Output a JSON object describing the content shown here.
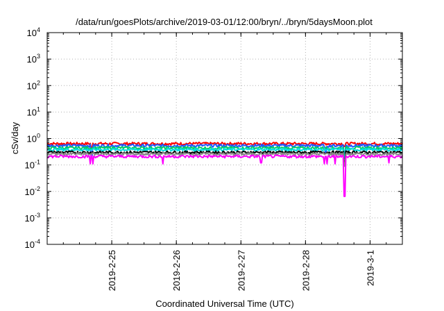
{
  "chart_data": {
    "type": "line",
    "title": "/data/run/goesPlots/archive/2019-03-01/12:00/bryn/../bryn/5daysMoon.plot",
    "xlabel": "Coordinated Universal Time (UTC)",
    "ylabel": "cSv/day",
    "yscale": "log",
    "ylim": [
      0.0001,
      10000
    ],
    "y_ticks": [
      {
        "base": "10",
        "exp": "-4",
        "value": 0.0001
      },
      {
        "base": "10",
        "exp": "-3",
        "value": 0.001
      },
      {
        "base": "10",
        "exp": "-2",
        "value": 0.01
      },
      {
        "base": "10",
        "exp": "-1",
        "value": 0.1
      },
      {
        "base": "10",
        "exp": "0",
        "value": 1
      },
      {
        "base": "10",
        "exp": "1",
        "value": 10
      },
      {
        "base": "10",
        "exp": "2",
        "value": 100
      },
      {
        "base": "10",
        "exp": "3",
        "value": 1000
      },
      {
        "base": "10",
        "exp": "4",
        "value": 10000
      }
    ],
    "xlim": [
      "2019-02-24T00:00",
      "2019-03-01T12:00"
    ],
    "x_ticks": [
      {
        "label": "2019-2-25",
        "value": "2019-02-25T00:00"
      },
      {
        "label": "2019-2-26",
        "value": "2019-02-26T00:00"
      },
      {
        "label": "2019-2-27",
        "value": "2019-02-27T00:00"
      },
      {
        "label": "2019-2-28",
        "value": "2019-02-28T00:00"
      },
      {
        "label": "2019-3-1",
        "value": "2019-03-01T00:00"
      }
    ],
    "grid": true,
    "series": [
      {
        "color": "#ff0000",
        "level": 0.64,
        "dips": [
          {
            "x": "2019-02-24T16:30",
            "y": 0.42
          },
          {
            "x": "2019-02-28T14:30",
            "y": 0.5
          }
        ]
      },
      {
        "color": "#1e5aff",
        "level": 0.54,
        "dips": [
          {
            "x": "2019-02-24T16:30",
            "y": 0.2
          },
          {
            "x": "2019-02-28T07:30",
            "y": 0.3
          },
          {
            "x": "2019-02-28T14:30",
            "y": 0.25
          }
        ]
      },
      {
        "color": "#00cc66",
        "level": 0.44,
        "dips": [
          {
            "x": "2019-02-28T14:30",
            "y": 0.2
          }
        ]
      },
      {
        "color": "#00dddd",
        "level": 0.38,
        "dips": [
          {
            "x": "2019-02-28T14:30",
            "y": 0.18
          }
        ]
      },
      {
        "color": "#000000",
        "level": 0.3,
        "dips": [
          {
            "x": "2019-02-28T14:30",
            "y": 0.1
          }
        ]
      },
      {
        "color": "#888888",
        "level": 0.26,
        "dips": [
          {
            "x": "2019-02-28T14:30",
            "y": 0.09
          }
        ]
      },
      {
        "color": "#ff00ff",
        "level": 0.21,
        "dips": [
          {
            "x": "2019-02-24T16:00",
            "y": 0.11
          },
          {
            "x": "2019-02-24T17:00",
            "y": 0.11
          },
          {
            "x": "2019-02-25T19:00",
            "y": 0.11
          },
          {
            "x": "2019-02-27T07:30",
            "y": 0.12
          },
          {
            "x": "2019-02-28T07:00",
            "y": 0.11
          },
          {
            "x": "2019-02-28T08:00",
            "y": 0.11
          },
          {
            "x": "2019-02-28T11:00",
            "y": 0.11
          },
          {
            "x": "2019-02-28T14:30",
            "y": 0.0065
          },
          {
            "x": "2019-03-01T07:00",
            "y": 0.12
          }
        ]
      }
    ]
  }
}
